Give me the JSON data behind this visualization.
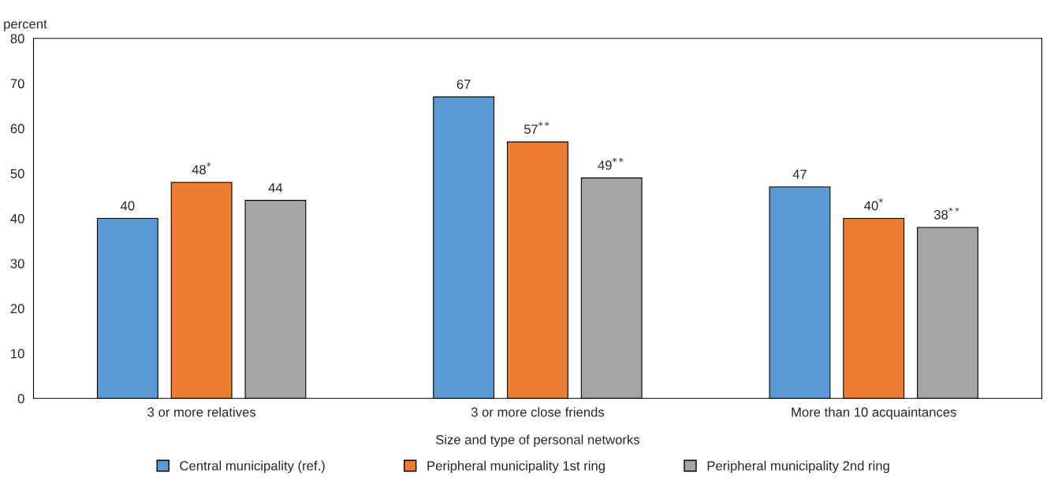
{
  "chart_data": {
    "type": "bar",
    "ylabel": "percent",
    "xlabel": "Size and type of personal networks",
    "categories": [
      "3 or more relatives",
      "3 or more close friends",
      "More than 10 acquaintances"
    ],
    "series": [
      {
        "name": "Central municipality (ref.)",
        "color": "#5b9bd5",
        "values": [
          40,
          67,
          47
        ],
        "value_labels": [
          "40",
          "67",
          "47"
        ]
      },
      {
        "name": "Peripheral municipality 1st ring",
        "color": "#ed7d31",
        "values": [
          48,
          57,
          40
        ],
        "value_labels": [
          "48$^{*}$",
          "57$^{**}$",
          "40$^{*}$"
        ]
      },
      {
        "name": "Peripheral municipality 2nd ring",
        "color": "#a5a5a5",
        "values": [
          44,
          49,
          38
        ],
        "value_labels": [
          "44",
          "49$^{**}$",
          "38$^{**}$"
        ]
      }
    ],
    "ylim": [
      0,
      80
    ],
    "yticks": [
      0,
      10,
      20,
      30,
      40,
      50,
      60,
      70,
      80
    ],
    "grid": false,
    "legend": "bottom"
  }
}
